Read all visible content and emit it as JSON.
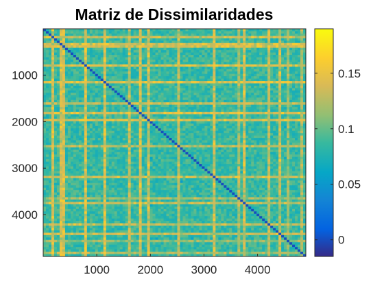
{
  "chart_data": {
    "type": "heatmap",
    "title": "Matriz de Dissimilaridades",
    "xlabel": "",
    "ylabel": "",
    "matrix_size": 4900,
    "x_range": [
      1,
      4900
    ],
    "y_range": [
      1,
      4900
    ],
    "y_direction": "reversed",
    "xticks": [
      1000,
      2000,
      3000,
      4000
    ],
    "xtick_labels": [
      "1000",
      "2000",
      "3000",
      "4000"
    ],
    "yticks": [
      1000,
      2000,
      3000,
      4000
    ],
    "ytick_labels": [
      "1000",
      "2000",
      "3000",
      "4000"
    ],
    "color_range": [
      -0.015,
      0.19
    ],
    "colorbar": {
      "ticks": [
        0,
        0.05,
        0.1,
        0.15
      ],
      "tick_labels": [
        "0",
        "0.05",
        "0.1",
        "0.15"
      ],
      "colormap": "parula",
      "placement": "right"
    },
    "value_summary": {
      "typical_range": [
        0.07,
        0.1
      ],
      "max_observed": 0.16
    },
    "grid": false,
    "colors": {
      "low": "#352a87",
      "mid": "#20b2aa",
      "high": "#f9fb0e"
    }
  }
}
